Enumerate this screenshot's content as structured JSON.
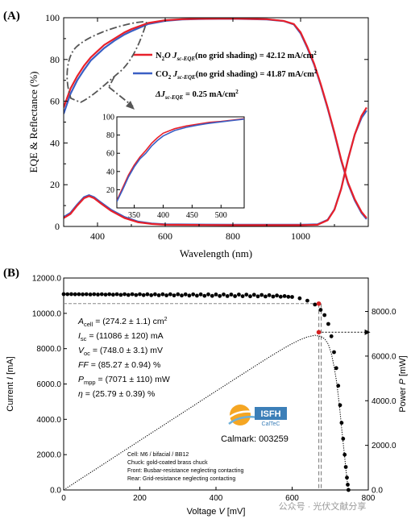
{
  "chart_data": [
    {
      "type": "line",
      "panel_label": "(A)",
      "xlabel": "Wavelength (nm)",
      "ylabel": "EQE & Reflectance (%)",
      "xlim": [
        300,
        1200
      ],
      "ylim": [
        0,
        100
      ],
      "x_ticks": [
        400,
        600,
        800,
        1000
      ],
      "y_ticks": [
        0,
        20,
        40,
        60,
        80,
        100
      ],
      "series": [
        {
          "name": "N₂O J_sc-EQE(no grid shading) = 42.12 mA/cm²",
          "legend_prefix": "N",
          "legend_sub1": "2",
          "legend_mid": "O J",
          "legend_sub2": "sc-EQE",
          "legend_suffix": "(no grid shading) = 42.12 mA/cm",
          "legend_sup": "2",
          "color": "#e8202a",
          "eqe": [
            [
              300,
              57
            ],
            [
              320,
              66
            ],
            [
              340,
              72
            ],
            [
              360,
              77
            ],
            [
              380,
              81
            ],
            [
              400,
              84
            ],
            [
              420,
              87
            ],
            [
              450,
              90
            ],
            [
              480,
              93
            ],
            [
              500,
              94.5
            ],
            [
              550,
              97.5
            ],
            [
              600,
              98.8
            ],
            [
              650,
              99.3
            ],
            [
              700,
              99.5
            ],
            [
              800,
              99.6
            ],
            [
              900,
              99.3
            ],
            [
              950,
              98.5
            ],
            [
              980,
              97
            ],
            [
              1000,
              93
            ],
            [
              1020,
              86
            ],
            [
              1040,
              78
            ],
            [
              1060,
              68
            ],
            [
              1080,
              57
            ],
            [
              1100,
              45
            ],
            [
              1120,
              32
            ],
            [
              1140,
              21
            ],
            [
              1160,
              13
            ],
            [
              1180,
              7
            ],
            [
              1195,
              4
            ]
          ],
          "reflectance": [
            [
              300,
              4
            ],
            [
              320,
              6
            ],
            [
              340,
              10
            ],
            [
              360,
              13.5
            ],
            [
              375,
              14.5
            ],
            [
              390,
              13.5
            ],
            [
              410,
              11
            ],
            [
              440,
              7.5
            ],
            [
              480,
              4
            ],
            [
              520,
              2
            ],
            [
              560,
              1.2
            ],
            [
              600,
              0.8
            ],
            [
              800,
              0.6
            ],
            [
              1000,
              0.6
            ],
            [
              1050,
              0.8
            ],
            [
              1080,
              3
            ],
            [
              1100,
              8
            ],
            [
              1120,
              18
            ],
            [
              1140,
              32
            ],
            [
              1160,
              44
            ],
            [
              1180,
              53
            ],
            [
              1195,
              57
            ]
          ]
        },
        {
          "name": "CO₂ J_sc-EQE(no grid shading) = 41.87 mA/cm²",
          "legend_prefix": "CO",
          "legend_sub1": "2",
          "legend_mid": " J",
          "legend_sub2": "sc-EQE",
          "legend_suffix": "(no grid shading) = 41.87 mA/cm",
          "legend_sup": "2",
          "color": "#3a5fc4",
          "eqe": [
            [
              300,
              54
            ],
            [
              320,
              63.5
            ],
            [
              340,
              70
            ],
            [
              360,
              75
            ],
            [
              380,
              79.5
            ],
            [
              400,
              82.5
            ],
            [
              420,
              85.5
            ],
            [
              450,
              89
            ],
            [
              480,
              92
            ],
            [
              500,
              93.5
            ],
            [
              550,
              97
            ],
            [
              600,
              98.5
            ],
            [
              650,
              99.2
            ],
            [
              700,
              99.4
            ],
            [
              800,
              99.5
            ],
            [
              900,
              99.2
            ],
            [
              950,
              98.4
            ],
            [
              980,
              96.8
            ],
            [
              1000,
              92.5
            ],
            [
              1020,
              85.5
            ],
            [
              1040,
              77.5
            ],
            [
              1060,
              67.5
            ],
            [
              1080,
              56.5
            ],
            [
              1100,
              44.5
            ],
            [
              1120,
              31.5
            ],
            [
              1140,
              20.5
            ],
            [
              1160,
              12.5
            ],
            [
              1180,
              6.5
            ],
            [
              1195,
              3.5
            ]
          ],
          "reflectance": [
            [
              300,
              4.5
            ],
            [
              320,
              6.5
            ],
            [
              340,
              10.5
            ],
            [
              360,
              14
            ],
            [
              375,
              15
            ],
            [
              390,
              14
            ],
            [
              410,
              11.5
            ],
            [
              440,
              8
            ],
            [
              480,
              4.5
            ],
            [
              520,
              2.3
            ],
            [
              560,
              1.4
            ],
            [
              600,
              1.0
            ],
            [
              800,
              0.8
            ],
            [
              1000,
              0.8
            ],
            [
              1050,
              1.0
            ],
            [
              1080,
              3.2
            ],
            [
              1100,
              8.2
            ],
            [
              1120,
              18.2
            ],
            [
              1140,
              32.2
            ],
            [
              1160,
              44
            ],
            [
              1180,
              52
            ],
            [
              1195,
              55.5
            ]
          ]
        }
      ],
      "annotation_prefix": "ΔJ",
      "annotation_sub": "sc-EQE",
      "annotation_suffix": " = 0.25 mA/cm",
      "annotation_sup": "2",
      "inset": {
        "xlim": [
          320,
          540
        ],
        "ylim": [
          0,
          100
        ],
        "x_ticks": [
          350,
          400,
          450,
          500
        ],
        "y_ticks": [
          20,
          40,
          60,
          80,
          100
        ],
        "series": [
          {
            "name": "N₂O",
            "color": "#e8202a",
            "points": [
              [
                320,
                8
              ],
              [
                330,
                22
              ],
              [
                340,
                36
              ],
              [
                350,
                47
              ],
              [
                360,
                56
              ],
              [
                370,
                63
              ],
              [
                380,
                71
              ],
              [
                390,
                77
              ],
              [
                400,
                82
              ],
              [
                420,
                87
              ],
              [
                440,
                90
              ],
              [
                460,
                92
              ],
              [
                480,
                94
              ],
              [
                500,
                95
              ],
              [
                520,
                96.5
              ],
              [
                540,
                98
              ]
            ]
          },
          {
            "name": "CO₂",
            "color": "#3a5fc4",
            "points": [
              [
                320,
                7
              ],
              [
                330,
                20
              ],
              [
                340,
                34
              ],
              [
                350,
                45
              ],
              [
                360,
                54
              ],
              [
                370,
                60
              ],
              [
                380,
                68
              ],
              [
                390,
                74
              ],
              [
                400,
                79
              ],
              [
                420,
                85
              ],
              [
                440,
                88.5
              ],
              [
                460,
                91
              ],
              [
                480,
                93
              ],
              [
                500,
                94.5
              ],
              [
                520,
                96
              ],
              [
                540,
                97.5
              ]
            ]
          }
        ]
      }
    },
    {
      "type": "scatter",
      "panel_label": "(B)",
      "xlabel": "Voltage V [mV]",
      "ylabel": "Current I [mA]",
      "y2label": "Power P [mW]",
      "xlim": [
        0,
        800
      ],
      "ylim": [
        0,
        12000
      ],
      "y2lim": [
        0,
        9500
      ],
      "x_ticks": [
        0,
        200,
        400,
        600,
        800
      ],
      "y_ticks": [
        "0.0",
        "2000.0",
        "4000.0",
        "6000.0",
        "8000.0",
        "10000.0",
        "12000.0"
      ],
      "y2_ticks": [
        "0.0",
        "2000.0",
        "4000.0",
        "6000.0",
        "8000.0"
      ],
      "iv_points": [
        [
          0,
          11086
        ],
        [
          20,
          11086
        ],
        [
          40,
          11085
        ],
        [
          60,
          11085
        ],
        [
          80,
          11084
        ],
        [
          100,
          11084
        ],
        [
          120,
          11083
        ],
        [
          140,
          11083
        ],
        [
          160,
          11082
        ],
        [
          180,
          11082
        ],
        [
          200,
          11081
        ],
        [
          220,
          11080
        ],
        [
          240,
          11080
        ],
        [
          260,
          11079
        ],
        [
          280,
          11078
        ],
        [
          300,
          11077
        ],
        [
          320,
          11076
        ],
        [
          340,
          11075
        ],
        [
          360,
          11074
        ],
        [
          380,
          11072
        ],
        [
          400,
          11071
        ],
        [
          420,
          11069
        ],
        [
          440,
          11066
        ],
        [
          460,
          11063
        ],
        [
          480,
          11058
        ],
        [
          500,
          11052
        ],
        [
          520,
          11043
        ],
        [
          540,
          11030
        ],
        [
          560,
          11010
        ],
        [
          580,
          10980
        ],
        [
          600,
          10930
        ],
        [
          620,
          10850
        ],
        [
          640,
          10720
        ],
        [
          660,
          10500
        ],
        [
          675,
          10200
        ],
        [
          685,
          9900
        ],
        [
          695,
          9400
        ],
        [
          703,
          8700
        ],
        [
          710,
          7800
        ],
        [
          716,
          6900
        ],
        [
          721,
          5900
        ],
        [
          726,
          4800
        ],
        [
          730,
          3800
        ],
        [
          734,
          2900
        ],
        [
          738,
          2000
        ],
        [
          741,
          1300
        ],
        [
          744,
          700
        ],
        [
          746,
          300
        ],
        [
          748,
          0
        ]
      ],
      "mpp": {
        "voltage": 670,
        "current": 10550,
        "power": 7071
      },
      "parameters": [
        {
          "name": "A",
          "sub": "cell",
          "value": " = (274.2 ± 1.1) cm",
          "sup": "2"
        },
        {
          "name": "I",
          "sub": "sc",
          "value": " = (11086 ± 120) mA",
          "sup": ""
        },
        {
          "name": "V",
          "sub": "oc",
          "value": " = (748.0 ± 3.1) mV",
          "sup": ""
        },
        {
          "name": "FF",
          "sub": "",
          "value": " = (85.27 ± 0.94) %",
          "sup": ""
        },
        {
          "name": "P",
          "sub": "mpp",
          "value": " = (7071 ± 110) mW",
          "sup": ""
        },
        {
          "name": "η",
          "sub": "",
          "value": " = (25.79 ± 0.39) %",
          "sup": ""
        }
      ],
      "logo_text": "ISFH",
      "logo_sub": "CalTeC",
      "calmark": "Calmark: 003259",
      "notes": [
        "Cell: M6 / bifacial / BB12",
        "Chuck: gold-coated brass chuck",
        "Front: Busbar-resistance neglecting contacting",
        "Rear: Grid-resistance neglecting contacting"
      ],
      "watermark": "公众号 · 光伏文献分享"
    }
  ]
}
